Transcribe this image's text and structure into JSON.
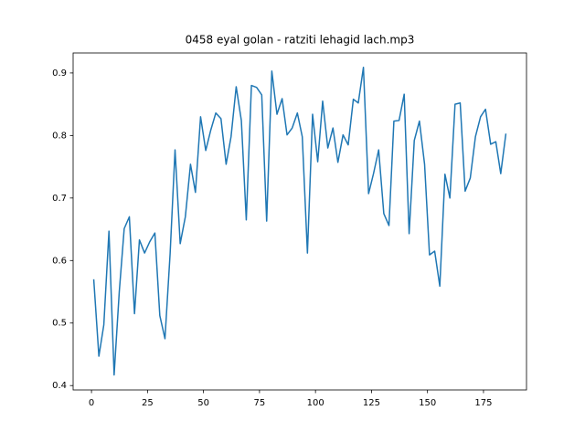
{
  "chart_data": {
    "type": "line",
    "title": "0458 eyal golan - ratziti lehagid lach.mp3",
    "x": [
      1,
      3.3,
      5.5,
      7.8,
      10.1,
      12.4,
      14.6,
      16.9,
      19.2,
      21.4,
      23.7,
      26,
      28.3,
      30.5,
      32.8,
      35.1,
      37.3,
      39.6,
      41.9,
      44.2,
      46.4,
      48.7,
      51,
      53.2,
      55.5,
      57.8,
      60.1,
      62.3,
      64.6,
      66.9,
      69.1,
      71.4,
      73.7,
      76,
      78.2,
      80.5,
      82.8,
      85.1,
      87.3,
      89.6,
      91.9,
      94.1,
      96.4,
      98.7,
      101,
      103.2,
      105.5,
      107.8,
      110,
      112.3,
      114.6,
      116.9,
      119.1,
      121.4,
      123.7,
      125.9,
      128.2,
      130.5,
      132.8,
      135,
      137.3,
      139.6,
      141.8,
      144.1,
      146.4,
      148.7,
      150.9,
      153.2,
      155.5,
      157.8,
      160,
      162.3,
      164.6,
      166.8,
      169.1,
      171.4,
      173.7,
      175.9,
      178.2,
      180.5,
      182.7,
      185
    ],
    "series": [
      {
        "color": "#1f77b4",
        "values": [
          0.57,
          0.447,
          0.497,
          0.647,
          0.417,
          0.55,
          0.651,
          0.67,
          0.515,
          0.633,
          0.612,
          0.63,
          0.644,
          0.512,
          0.475,
          0.611,
          0.777,
          0.627,
          0.67,
          0.754,
          0.709,
          0.83,
          0.776,
          0.808,
          0.836,
          0.827,
          0.754,
          0.798,
          0.878,
          0.824,
          0.665,
          0.88,
          0.877,
          0.865,
          0.663,
          0.903,
          0.834,
          0.859,
          0.801,
          0.812,
          0.836,
          0.798,
          0.612,
          0.834,
          0.758,
          0.855,
          0.78,
          0.812,
          0.757,
          0.801,
          0.785,
          0.858,
          0.852,
          0.909,
          0.707,
          0.739,
          0.777,
          0.675,
          0.656,
          0.823,
          0.824,
          0.866,
          0.643,
          0.792,
          0.823,
          0.754,
          0.609,
          0.615,
          0.559,
          0.738,
          0.7,
          0.85,
          0.852,
          0.711,
          0.732,
          0.798,
          0.83,
          0.842,
          0.786,
          0.79,
          0.739,
          0.803
        ]
      }
    ],
    "xlim": [
      -8.2,
      194.2
    ],
    "xticks": [
      0,
      25,
      50,
      75,
      100,
      125,
      150,
      175
    ],
    "ylim": [
      0.393,
      0.932
    ],
    "yticks": [
      0.4,
      0.5,
      0.6,
      0.7,
      0.8,
      0.9
    ]
  }
}
